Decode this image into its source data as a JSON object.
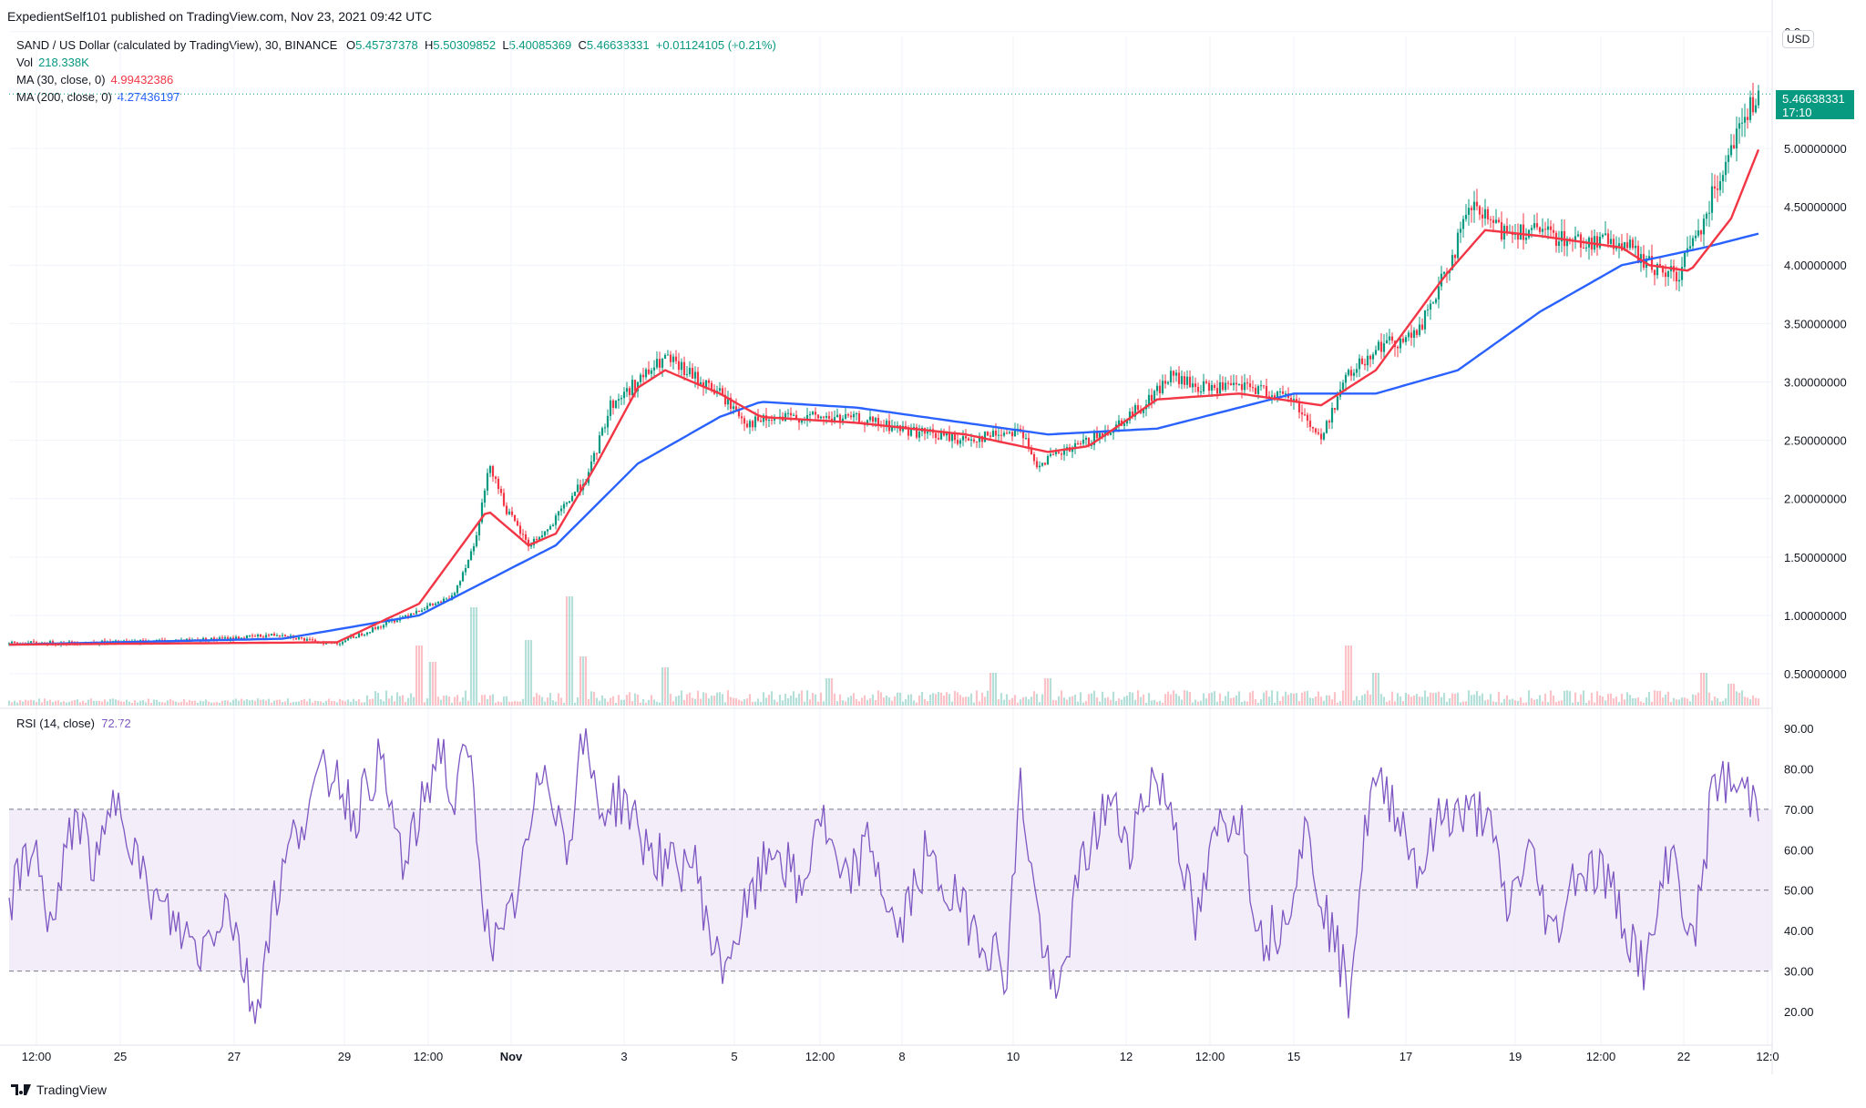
{
  "publisher_line": "ExpedientSelf101 published on TradingView.com, Nov 23, 2021 09:42 UTC",
  "legend": {
    "symbol": "SAND / US Dollar (calculated by TradingView), 30, BINANCE",
    "o_label": "O",
    "o": "5.45737378",
    "h_label": "H",
    "h": "5.50309852",
    "l_label": "L",
    "l": "5.40085369",
    "c_label": "C",
    "c": "5.46638331",
    "change": "+0.01124105 (+0.21%)",
    "vol_label": "Vol",
    "vol": "218.338K",
    "ma30_label": "MA (30, close, 0)",
    "ma30": "4.99432386",
    "ma200_label": "MA (200, close, 0)",
    "ma200": "4.27436197",
    "rsi_label": "RSI (14, close)",
    "rsi": "72.72"
  },
  "price_badge": {
    "price": "5.46638331",
    "countdown": "17:10"
  },
  "currency": "USD",
  "footer_brand": "TradingView",
  "colors": {
    "up": "#089981",
    "down": "#f23645",
    "ma30": "#f23645",
    "ma200": "#2962ff",
    "rsi": "#7e57c2",
    "rsi_band": "#ede7f6"
  },
  "chart_data": [
    {
      "type": "candlestick",
      "title": "SAND / US Dollar",
      "x_ticks": [
        "12:00",
        "25",
        "27",
        "29",
        "12:00",
        "Nov",
        "3",
        "5",
        "12:00",
        "8",
        "10",
        "12",
        "12:00",
        "15",
        "17",
        "19",
        "12:00",
        "22",
        "12:0"
      ],
      "y_ticks": [
        "0.50000000",
        "1.00000000",
        "1.50000000",
        "2.00000000",
        "2.50000000",
        "3.00000000",
        "3.50000000",
        "4.00000000",
        "4.50000000",
        "5.00000000",
        "6.0"
      ],
      "ylim": [
        0.25,
        6.0
      ],
      "grid": true,
      "price_path": [
        [
          0,
          0.76
        ],
        [
          40,
          0.77
        ],
        [
          80,
          0.8
        ],
        [
          100,
          0.84
        ],
        [
          110,
          0.78
        ],
        [
          120,
          0.76
        ],
        [
          135,
          0.9
        ],
        [
          150,
          1.05
        ],
        [
          162,
          1.15
        ],
        [
          170,
          1.6
        ],
        [
          176,
          2.3
        ],
        [
          182,
          1.9
        ],
        [
          190,
          1.6
        ],
        [
          198,
          1.75
        ],
        [
          205,
          2.0
        ],
        [
          212,
          2.2
        ],
        [
          220,
          2.8
        ],
        [
          230,
          3.0
        ],
        [
          240,
          3.2
        ],
        [
          250,
          3.05
        ],
        [
          260,
          2.9
        ],
        [
          270,
          2.65
        ],
        [
          290,
          2.7
        ],
        [
          310,
          2.68
        ],
        [
          330,
          2.58
        ],
        [
          350,
          2.5
        ],
        [
          370,
          2.6
        ],
        [
          375,
          2.3
        ],
        [
          385,
          2.38
        ],
        [
          400,
          2.55
        ],
        [
          415,
          2.8
        ],
        [
          425,
          3.05
        ],
        [
          435,
          2.95
        ],
        [
          455,
          2.95
        ],
        [
          470,
          2.85
        ],
        [
          480,
          2.5
        ],
        [
          488,
          3.0
        ],
        [
          500,
          3.3
        ],
        [
          515,
          3.4
        ],
        [
          525,
          3.9
        ],
        [
          535,
          4.5
        ],
        [
          545,
          4.3
        ],
        [
          555,
          4.3
        ],
        [
          575,
          4.2
        ],
        [
          590,
          4.2
        ],
        [
          600,
          4.0
        ],
        [
          610,
          3.9
        ],
        [
          620,
          4.4
        ],
        [
          630,
          5.05
        ],
        [
          640,
          5.47
        ]
      ],
      "ma30_path": [
        [
          0,
          0.75
        ],
        [
          120,
          0.77
        ],
        [
          150,
          1.1
        ],
        [
          175,
          1.9
        ],
        [
          190,
          1.6
        ],
        [
          200,
          1.7
        ],
        [
          215,
          2.3
        ],
        [
          230,
          2.95
        ],
        [
          240,
          3.1
        ],
        [
          260,
          2.9
        ],
        [
          275,
          2.7
        ],
        [
          310,
          2.65
        ],
        [
          350,
          2.55
        ],
        [
          380,
          2.4
        ],
        [
          395,
          2.45
        ],
        [
          420,
          2.85
        ],
        [
          450,
          2.9
        ],
        [
          480,
          2.8
        ],
        [
          500,
          3.1
        ],
        [
          525,
          3.9
        ],
        [
          540,
          4.3
        ],
        [
          560,
          4.25
        ],
        [
          590,
          4.15
        ],
        [
          600,
          4.0
        ],
        [
          615,
          3.95
        ],
        [
          630,
          4.4
        ],
        [
          640,
          4.99
        ]
      ],
      "ma200_path": [
        [
          0,
          0.75
        ],
        [
          100,
          0.8
        ],
        [
          150,
          1.0
        ],
        [
          175,
          1.3
        ],
        [
          200,
          1.6
        ],
        [
          230,
          2.3
        ],
        [
          260,
          2.7
        ],
        [
          275,
          2.83
        ],
        [
          310,
          2.78
        ],
        [
          380,
          2.55
        ],
        [
          420,
          2.6
        ],
        [
          470,
          2.9
        ],
        [
          500,
          2.9
        ],
        [
          530,
          3.1
        ],
        [
          560,
          3.6
        ],
        [
          590,
          4.0
        ],
        [
          620,
          4.15
        ],
        [
          640,
          4.27
        ]
      ],
      "volume_spikes": [
        [
          150,
          0.55
        ],
        [
          155,
          0.4
        ],
        [
          170,
          0.9
        ],
        [
          190,
          0.6
        ],
        [
          205,
          1.0
        ],
        [
          210,
          0.45
        ],
        [
          240,
          0.35
        ],
        [
          300,
          0.25
        ],
        [
          360,
          0.3
        ],
        [
          380,
          0.25
        ],
        [
          490,
          0.55
        ],
        [
          500,
          0.3
        ],
        [
          620,
          0.3
        ],
        [
          630,
          0.2
        ]
      ],
      "last_price": 5.46638331,
      "ma30_last": 4.99432386,
      "ma200_last": 4.27436197
    },
    {
      "type": "line",
      "title": "RSI (14, close)",
      "y_ticks": [
        "20.00",
        "30.00",
        "40.00",
        "50.00",
        "60.00",
        "70.00",
        "80.00",
        "90.00"
      ],
      "ylim": [
        13,
        95
      ],
      "band": [
        30,
        70
      ],
      "midline": 50,
      "series": [
        {
          "name": "RSI (14, close)",
          "last": 72.72
        }
      ],
      "rsi_path": [
        [
          0,
          45
        ],
        [
          8,
          62
        ],
        [
          16,
          40
        ],
        [
          24,
          70
        ],
        [
          32,
          55
        ],
        [
          40,
          75
        ],
        [
          50,
          50
        ],
        [
          60,
          42
        ],
        [
          70,
          35
        ],
        [
          80,
          48
        ],
        [
          90,
          19
        ],
        [
          96,
          45
        ],
        [
          105,
          65
        ],
        [
          115,
          78
        ],
        [
          120,
          80
        ],
        [
          126,
          68
        ],
        [
          135,
          82
        ],
        [
          145,
          55
        ],
        [
          150,
          68
        ],
        [
          158,
          87
        ],
        [
          162,
          70
        ],
        [
          168,
          85
        ],
        [
          175,
          40
        ],
        [
          180,
          35
        ],
        [
          188,
          55
        ],
        [
          196,
          83
        ],
        [
          204,
          60
        ],
        [
          210,
          88
        ],
        [
          216,
          70
        ],
        [
          225,
          73
        ],
        [
          232,
          62
        ],
        [
          242,
          55
        ],
        [
          250,
          58
        ],
        [
          260,
          30
        ],
        [
          270,
          45
        ],
        [
          280,
          62
        ],
        [
          290,
          48
        ],
        [
          296,
          70
        ],
        [
          305,
          50
        ],
        [
          315,
          62
        ],
        [
          325,
          38
        ],
        [
          335,
          58
        ],
        [
          345,
          48
        ],
        [
          355,
          40
        ],
        [
          365,
          30
        ],
        [
          370,
          76
        ],
        [
          376,
          45
        ],
        [
          383,
          20
        ],
        [
          392,
          55
        ],
        [
          402,
          72
        ],
        [
          410,
          62
        ],
        [
          418,
          78
        ],
        [
          426,
          70
        ],
        [
          434,
          40
        ],
        [
          442,
          65
        ],
        [
          450,
          70
        ],
        [
          458,
          38
        ],
        [
          466,
          42
        ],
        [
          474,
          65
        ],
        [
          482,
          44
        ],
        [
          490,
          25
        ],
        [
          498,
          75
        ],
        [
          506,
          73
        ],
        [
          516,
          55
        ],
        [
          525,
          70
        ],
        [
          533,
          68
        ],
        [
          540,
          70
        ],
        [
          548,
          45
        ],
        [
          556,
          60
        ],
        [
          565,
          38
        ],
        [
          573,
          55
        ],
        [
          583,
          55
        ],
        [
          591,
          42
        ],
        [
          599,
          30
        ],
        [
          608,
          62
        ],
        [
          616,
          35
        ],
        [
          624,
          78
        ],
        [
          632,
          75
        ],
        [
          640,
          72.72
        ]
      ]
    }
  ]
}
